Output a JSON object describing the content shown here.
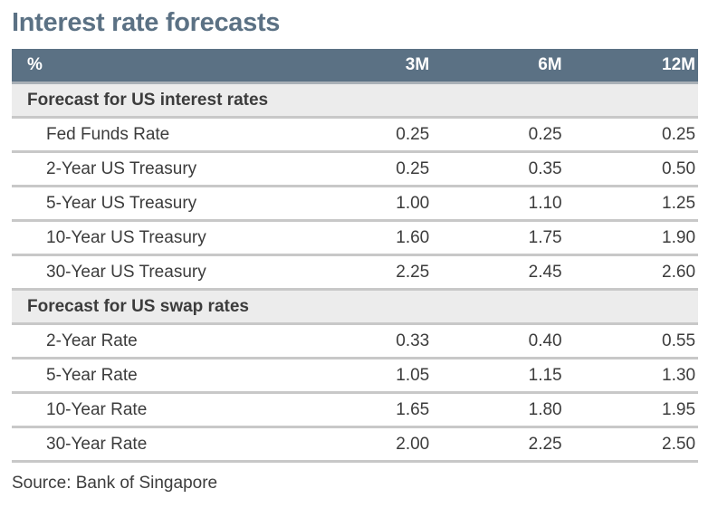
{
  "title": "Interest rate forecasts",
  "header": {
    "unit": "%",
    "cols": [
      "3M",
      "6M",
      "12M"
    ]
  },
  "sections": [
    {
      "title": "Forecast for US interest rates",
      "rows": [
        {
          "label": "Fed Funds Rate",
          "values": [
            "0.25",
            "0.25",
            "0.25"
          ]
        },
        {
          "label": "2-Year US Treasury",
          "values": [
            "0.25",
            "0.35",
            "0.50"
          ]
        },
        {
          "label": "5-Year US Treasury",
          "values": [
            "1.00",
            "1.10",
            "1.25"
          ]
        },
        {
          "label": "10-Year US Treasury",
          "values": [
            "1.60",
            "1.75",
            "1.90"
          ]
        },
        {
          "label": "30-Year US Treasury",
          "values": [
            "2.25",
            "2.45",
            "2.60"
          ]
        }
      ]
    },
    {
      "title": "Forecast for US swap rates",
      "rows": [
        {
          "label": "2-Year Rate",
          "values": [
            "0.33",
            "0.40",
            "0.55"
          ]
        },
        {
          "label": "5-Year Rate",
          "values": [
            "1.05",
            "1.15",
            "1.30"
          ]
        },
        {
          "label": "10-Year Rate",
          "values": [
            "1.65",
            "1.80",
            "1.95"
          ]
        },
        {
          "label": "30-Year Rate",
          "values": [
            "2.00",
            "2.25",
            "2.50"
          ]
        }
      ]
    }
  ],
  "source": "Source: Bank of Singapore",
  "colors": {
    "header_bg": "#5b7184",
    "section_bg": "#ececec",
    "title": "#5b7184"
  }
}
